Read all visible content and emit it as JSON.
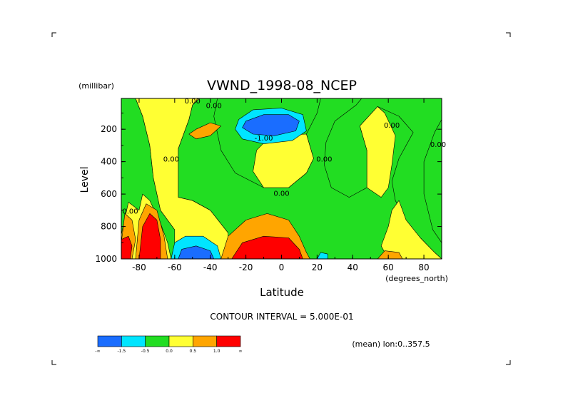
{
  "chart_data": {
    "type": "contour",
    "title": "VWND_1998-08_NCEP",
    "xlabel": "Latitude",
    "x_units": "(degrees_north)",
    "ylabel": "Level",
    "y_units": "(millibar)",
    "xlim": [
      -90,
      90
    ],
    "ylim": [
      1000,
      10
    ],
    "x_ticks": [
      "-80",
      "-60",
      "-40",
      "-20",
      "0",
      "20",
      "40",
      "60",
      "80"
    ],
    "x_tick_values": [
      -80,
      -60,
      -40,
      -20,
      0,
      20,
      40,
      60,
      80
    ],
    "y_ticks": [
      "200",
      "400",
      "600",
      "800",
      "1000"
    ],
    "y_tick_values": [
      200,
      400,
      600,
      800,
      1000
    ],
    "contour_interval_text": "CONTOUR INTERVAL = 5.000E-01",
    "mean_text": "(mean) lon:0..357.5",
    "contour_labels": [
      {
        "text": "0.00",
        "lat": -38,
        "lev": 70
      },
      {
        "text": "0.00",
        "lat": -50,
        "lev": 40
      },
      {
        "text": "-1.00",
        "lat": -10,
        "lev": 270
      },
      {
        "text": "0.00",
        "lat": 24,
        "lev": 400
      },
      {
        "text": "0.00",
        "lat": 0,
        "lev": 610
      },
      {
        "text": "0.00",
        "lat": -62,
        "lev": 400
      },
      {
        "text": "0.00",
        "lat": -85,
        "lev": 720
      },
      {
        "text": "0.00",
        "lat": 62,
        "lev": 190
      },
      {
        "text": "0.00",
        "lat": 88,
        "lev": 310
      }
    ],
    "fill_levels": [
      {
        "label": "-∞",
        "color": "#1a6dff"
      },
      {
        "label": "-1.5",
        "color": "#00e5ff"
      },
      {
        "label": "-0.5",
        "color": "#22dd22"
      },
      {
        "label": "0.0",
        "color": "#ffff33"
      },
      {
        "label": "0.5",
        "color": "#ffa500"
      },
      {
        "label": "1.0",
        "color": "#ff0000"
      },
      {
        "label": "∞",
        "color": "#ff0000"
      }
    ],
    "colorbar_labels": [
      "-∞",
      "-1.5",
      "-0.5",
      "0.0",
      "0.5",
      "1.0",
      "∞"
    ],
    "colors": {
      "blue": "#1a6dff",
      "cyan": "#00e5ff",
      "green": "#22dd22",
      "yellow": "#ffff33",
      "orange": "#ffa500",
      "red": "#ff0000"
    },
    "regions": [
      {
        "fill": "green",
        "points": [
          [
            -90,
            10
          ],
          [
            -90,
            1000
          ],
          [
            -60,
            1000
          ],
          [
            -60,
            820
          ],
          [
            -68,
            700
          ],
          [
            -72,
            500
          ],
          [
            -74,
            300
          ],
          [
            -78,
            120
          ],
          [
            -82,
            10
          ]
        ]
      },
      {
        "fill": "green",
        "points": [
          [
            -36,
            10
          ],
          [
            -38,
            120
          ],
          [
            -34,
            330
          ],
          [
            -26,
            470
          ],
          [
            -10,
            560
          ],
          [
            4,
            560
          ],
          [
            14,
            470
          ],
          [
            18,
            380
          ],
          [
            14,
            230
          ],
          [
            20,
            100
          ],
          [
            22,
            10
          ],
          [
            45,
            10
          ],
          [
            42,
            50
          ],
          [
            30,
            150
          ],
          [
            25,
            280
          ],
          [
            24,
            420
          ],
          [
            28,
            560
          ],
          [
            38,
            620
          ],
          [
            48,
            560
          ],
          [
            48,
            330
          ],
          [
            44,
            180
          ],
          [
            54,
            60
          ],
          [
            66,
            120
          ],
          [
            74,
            220
          ],
          [
            66,
            380
          ],
          [
            62,
            520
          ],
          [
            64,
            640
          ],
          [
            70,
            760
          ],
          [
            78,
            870
          ],
          [
            86,
            960
          ],
          [
            90,
            1000
          ],
          [
            -30,
            1000
          ],
          [
            -30,
            840
          ],
          [
            -40,
            700
          ],
          [
            -50,
            640
          ],
          [
            -58,
            620
          ],
          [
            -58,
            320
          ],
          [
            -52,
            140
          ],
          [
            -50,
            50
          ],
          [
            -46,
            10
          ]
        ]
      },
      {
        "fill": "green",
        "points": [
          [
            80,
            400
          ],
          [
            86,
            220
          ],
          [
            90,
            140
          ],
          [
            90,
            900
          ],
          [
            85,
            820
          ],
          [
            80,
            600
          ]
        ]
      },
      {
        "fill": "yellow",
        "points": [
          [
            -46,
            10
          ],
          [
            -50,
            50
          ],
          [
            -52,
            140
          ],
          [
            -58,
            320
          ],
          [
            -58,
            620
          ],
          [
            -50,
            640
          ],
          [
            -40,
            700
          ],
          [
            -30,
            840
          ],
          [
            -30,
            1000
          ],
          [
            -60,
            1000
          ],
          [
            -60,
            820
          ],
          [
            -68,
            700
          ],
          [
            -72,
            500
          ],
          [
            -74,
            300
          ],
          [
            -78,
            120
          ],
          [
            -82,
            10
          ]
        ]
      },
      {
        "fill": "orange",
        "points": [
          [
            -48,
            200
          ],
          [
            -40,
            160
          ],
          [
            -34,
            180
          ],
          [
            -40,
            240
          ],
          [
            -48,
            260
          ],
          [
            -52,
            230
          ]
        ]
      },
      {
        "fill": "yellow",
        "points": [
          [
            -10,
            560
          ],
          [
            4,
            560
          ],
          [
            14,
            470
          ],
          [
            18,
            380
          ],
          [
            14,
            230
          ],
          [
            -6,
            240
          ],
          [
            -14,
            330
          ],
          [
            -16,
            460
          ]
        ]
      },
      {
        "fill": "yellow",
        "points": [
          [
            48,
            330
          ],
          [
            48,
            560
          ],
          [
            56,
            620
          ],
          [
            60,
            560
          ],
          [
            62,
            420
          ],
          [
            64,
            240
          ],
          [
            58,
            100
          ],
          [
            54,
            60
          ],
          [
            44,
            180
          ]
        ]
      },
      {
        "fill": "yellow",
        "points": [
          [
            66,
            640
          ],
          [
            70,
            760
          ],
          [
            78,
            870
          ],
          [
            86,
            960
          ],
          [
            90,
            1000
          ],
          [
            60,
            1000
          ],
          [
            56,
            920
          ],
          [
            60,
            800
          ],
          [
            62,
            700
          ]
        ]
      },
      {
        "fill": "cyan",
        "points": [
          [
            -24,
            140
          ],
          [
            -16,
            80
          ],
          [
            0,
            70
          ],
          [
            12,
            110
          ],
          [
            14,
            210
          ],
          [
            6,
            270
          ],
          [
            -10,
            290
          ],
          [
            -22,
            260
          ],
          [
            -26,
            200
          ]
        ]
      },
      {
        "fill": "blue",
        "points": [
          [
            -20,
            150
          ],
          [
            -10,
            110
          ],
          [
            4,
            110
          ],
          [
            10,
            150
          ],
          [
            8,
            210
          ],
          [
            -4,
            240
          ],
          [
            -16,
            230
          ],
          [
            -22,
            190
          ]
        ]
      },
      {
        "fill": "cyan",
        "points": [
          [
            -62,
            1000
          ],
          [
            -60,
            900
          ],
          [
            -54,
            860
          ],
          [
            -44,
            860
          ],
          [
            -36,
            920
          ],
          [
            -34,
            1000
          ]
        ]
      },
      {
        "fill": "blue",
        "points": [
          [
            -58,
            1000
          ],
          [
            -56,
            940
          ],
          [
            -48,
            920
          ],
          [
            -40,
            950
          ],
          [
            -38,
            1000
          ]
        ]
      },
      {
        "fill": "cyan",
        "points": [
          [
            20,
            1000
          ],
          [
            22,
            960
          ],
          [
            26,
            970
          ],
          [
            26,
            1000
          ]
        ]
      },
      {
        "fill": "yellow",
        "points": [
          [
            -90,
            850
          ],
          [
            -86,
            650
          ],
          [
            -80,
            700
          ],
          [
            -78,
            600
          ],
          [
            -74,
            640
          ],
          [
            -68,
            780
          ],
          [
            -64,
            900
          ],
          [
            -62,
            1000
          ],
          [
            -90,
            1000
          ]
        ]
      },
      {
        "fill": "orange",
        "points": [
          [
            -90,
            900
          ],
          [
            -88,
            720
          ],
          [
            -84,
            760
          ],
          [
            -82,
            880
          ],
          [
            -84,
            1000
          ],
          [
            -90,
            1000
          ]
        ]
      },
      {
        "fill": "orange",
        "points": [
          [
            -82,
            1000
          ],
          [
            -80,
            760
          ],
          [
            -76,
            660
          ],
          [
            -70,
            700
          ],
          [
            -66,
            860
          ],
          [
            -64,
            1000
          ]
        ]
      },
      {
        "fill": "red",
        "points": [
          [
            -90,
            1000
          ],
          [
            -90,
            880
          ],
          [
            -86,
            860
          ],
          [
            -84,
            920
          ],
          [
            -85,
            1000
          ]
        ]
      },
      {
        "fill": "red",
        "points": [
          [
            -80,
            1000
          ],
          [
            -78,
            800
          ],
          [
            -74,
            720
          ],
          [
            -70,
            760
          ],
          [
            -68,
            880
          ],
          [
            -68,
            1000
          ]
        ]
      },
      {
        "fill": "orange",
        "points": [
          [
            -34,
            1000
          ],
          [
            -30,
            860
          ],
          [
            -20,
            760
          ],
          [
            -8,
            720
          ],
          [
            4,
            760
          ],
          [
            10,
            860
          ],
          [
            14,
            960
          ],
          [
            16,
            1000
          ]
        ]
      },
      {
        "fill": "red",
        "points": [
          [
            -28,
            1000
          ],
          [
            -22,
            900
          ],
          [
            -10,
            860
          ],
          [
            4,
            870
          ],
          [
            10,
            940
          ],
          [
            12,
            1000
          ]
        ]
      },
      {
        "fill": "orange",
        "points": [
          [
            54,
            1000
          ],
          [
            58,
            950
          ],
          [
            66,
            960
          ],
          [
            68,
            1000
          ]
        ]
      }
    ]
  }
}
